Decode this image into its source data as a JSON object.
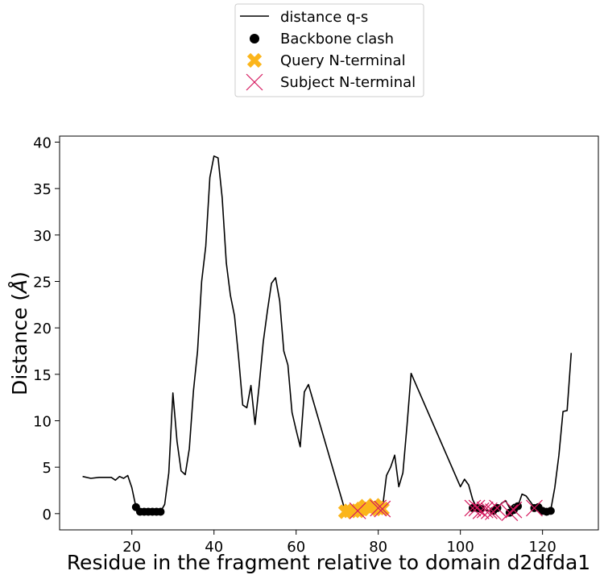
{
  "chart_data": {
    "type": "line",
    "xlabel": "Residue in the fragment relative to domain d2dfda1",
    "ylabel_main": "Distance (",
    "ylabel_unit": "Å",
    "ylabel_end": ")",
    "xlim": [
      2.4,
      133.6
    ],
    "ylim": [
      -1.75,
      40.65
    ],
    "xticks": [
      20,
      40,
      60,
      80,
      100,
      120
    ],
    "yticks": [
      0,
      5,
      10,
      15,
      20,
      25,
      30,
      35,
      40
    ],
    "legend_position": "top-center",
    "legend": [
      "distance q-s",
      "Backbone clash",
      "Query N-terminal",
      "Subject N-terminal"
    ],
    "colors": {
      "line": "#000000",
      "clash": "#000000",
      "query": "#fbb51b",
      "subject": "#d6195e"
    },
    "series": [
      {
        "name": "distance q-s",
        "kind": "line",
        "x": [
          8,
          10,
          12,
          14,
          15,
          16,
          17,
          18,
          19,
          20,
          21,
          22,
          23,
          24,
          25,
          26,
          27,
          28,
          29,
          30,
          31,
          32,
          33,
          34,
          35,
          36,
          37,
          38,
          39,
          40,
          41,
          42,
          43,
          44,
          45,
          46,
          47,
          48,
          49,
          50,
          51,
          52,
          53,
          54,
          55,
          56,
          57,
          58,
          59,
          60,
          61,
          62,
          63,
          72,
          73,
          74,
          75,
          76,
          77,
          78,
          79,
          80,
          81,
          82,
          83,
          84,
          85,
          86,
          87,
          88,
          100,
          101,
          102,
          103,
          104,
          105,
          106,
          107,
          108,
          109,
          110,
          111,
          112,
          113,
          114,
          115,
          116,
          117,
          118,
          119,
          120,
          121,
          122,
          123,
          124,
          125,
          126,
          127
        ],
        "y": [
          4.0,
          3.8,
          3.9,
          3.9,
          3.9,
          3.6,
          4.0,
          3.8,
          4.1,
          2.8,
          0.7,
          0.2,
          0.2,
          0.2,
          0.2,
          0.2,
          0.2,
          1.0,
          4.4,
          13.0,
          7.8,
          4.6,
          4.2,
          7.0,
          13.2,
          17.5,
          25.0,
          28.8,
          36.2,
          38.5,
          38.3,
          34.0,
          27.0,
          23.5,
          21.3,
          16.8,
          11.7,
          11.4,
          13.8,
          9.6,
          13.8,
          18.5,
          21.8,
          24.8,
          25.4,
          22.9,
          17.5,
          16.0,
          10.9,
          9.0,
          7.2,
          13.1,
          13.9,
          0.2,
          0.3,
          0.3,
          0.3,
          0.5,
          0.8,
          0.5,
          0.9,
          0.6,
          0.5,
          4.1,
          5.0,
          6.3,
          2.9,
          4.4,
          9.5,
          15.1,
          2.9,
          3.7,
          3.1,
          1.5,
          0.6,
          0.3,
          0.4,
          0.3,
          0.2,
          0.6,
          1.1,
          1.4,
          0.6,
          1.0,
          0.8,
          2.1,
          1.9,
          1.3,
          0.7,
          0.9,
          0.4,
          0.2,
          0.4,
          2.8,
          6.3,
          11.0,
          11.1,
          17.3
        ]
      },
      {
        "name": "Backbone clash",
        "kind": "scatter",
        "x": [
          21,
          22,
          23,
          24,
          25,
          26,
          27,
          103,
          104,
          105,
          108,
          109,
          112,
          113,
          114,
          118,
          119,
          120,
          121,
          122
        ],
        "y": [
          0.7,
          0.2,
          0.2,
          0.2,
          0.2,
          0.2,
          0.2,
          0.6,
          0.6,
          0.5,
          0.3,
          0.6,
          0.1,
          0.4,
          0.8,
          0.6,
          0.7,
          0.3,
          0.2,
          0.3
        ]
      },
      {
        "name": "Query N-terminal",
        "kind": "scatter",
        "x": [
          72,
          73,
          74,
          75,
          76,
          77,
          78,
          79,
          80,
          81
        ],
        "y": [
          0.2,
          0.3,
          0.3,
          0.3,
          0.5,
          0.8,
          0.5,
          0.9,
          0.6,
          0.5
        ]
      },
      {
        "name": "Subject N-terminal",
        "kind": "scatter",
        "x": [
          75,
          80,
          81,
          103,
          104,
          105,
          106,
          107,
          108,
          109,
          112,
          113,
          118
        ],
        "y": [
          0.3,
          0.6,
          0.5,
          0.6,
          0.6,
          0.3,
          0.4,
          0.3,
          0.2,
          0.6,
          0.1,
          0.4,
          0.6
        ]
      }
    ]
  }
}
